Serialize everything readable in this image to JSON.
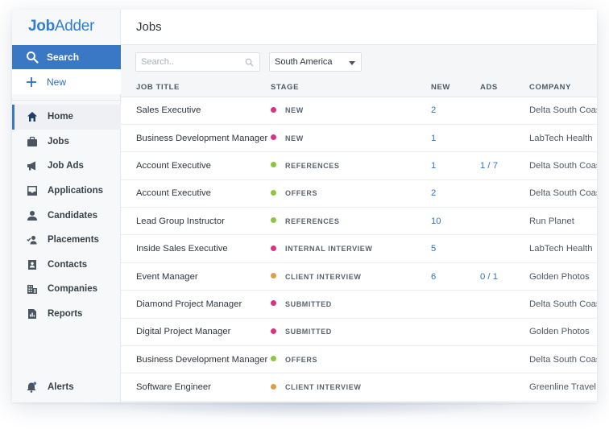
{
  "app": {
    "logo_part1": "Job",
    "logo_part2": "Adder"
  },
  "sidebar": {
    "search_label": "Search",
    "new_label": "New",
    "items": [
      {
        "label": "Home",
        "icon": "home-icon",
        "active": true
      },
      {
        "label": "Jobs",
        "icon": "briefcase-icon"
      },
      {
        "label": "Job Ads",
        "icon": "megaphone-icon"
      },
      {
        "label": "Applications",
        "icon": "inbox-icon"
      },
      {
        "label": "Candidates",
        "icon": "person-icon"
      },
      {
        "label": "Placements",
        "icon": "person-check-icon"
      },
      {
        "label": "Contacts",
        "icon": "contact-card-icon"
      },
      {
        "label": "Companies",
        "icon": "building-icon"
      },
      {
        "label": "Reports",
        "icon": "report-icon"
      }
    ],
    "alerts_label": "Alerts"
  },
  "page": {
    "title": "Jobs"
  },
  "filters": {
    "search_placeholder": "Search..",
    "region_value": "South America"
  },
  "table": {
    "columns": [
      "JOB TITLE",
      "STAGE",
      "NEW",
      "ADS",
      "COMPANY"
    ],
    "stage_colors": {
      "NEW": "#d63384",
      "REFERENCES": "#8cc63f",
      "OFFERS": "#8cc63f",
      "INTERNAL INTERVIEW": "#d63384",
      "CLIENT INTERVIEW": "#d9a04a",
      "SUBMITTED": "#d63384"
    },
    "rows": [
      {
        "title": "Sales Executive",
        "stage": "NEW",
        "new": "2",
        "ads": "",
        "company": "Delta South Coast"
      },
      {
        "title": "Business Development Manager",
        "stage": "NEW",
        "new": "1",
        "ads": "",
        "company": "LabTech Health"
      },
      {
        "title": "Account Executive",
        "stage": "REFERENCES",
        "new": "1",
        "ads": "1 / 7",
        "company": "Delta South Coast"
      },
      {
        "title": "Account Executive",
        "stage": "OFFERS",
        "new": "2",
        "ads": "",
        "company": "Delta South Coast"
      },
      {
        "title": "Lead Group Instructor",
        "stage": "REFERENCES",
        "new": "10",
        "ads": "",
        "company": "Run Planet"
      },
      {
        "title": "Inside Sales Executive",
        "stage": "INTERNAL INTERVIEW",
        "new": "5",
        "ads": "",
        "company": "LabTech Health"
      },
      {
        "title": "Event Manager",
        "stage": "CLIENT INTERVIEW",
        "new": "6",
        "ads": "0 / 1",
        "company": "Golden Photos"
      },
      {
        "title": "Diamond Project Manager",
        "stage": "SUBMITTED",
        "new": "",
        "ads": "",
        "company": "Delta South Coast"
      },
      {
        "title": "Digital Project Manager",
        "stage": "SUBMITTED",
        "new": "",
        "ads": "",
        "company": "Golden Photos"
      },
      {
        "title": "Business Development Manager",
        "stage": "OFFERS",
        "new": "",
        "ads": "",
        "company": "Delta South Coast"
      },
      {
        "title": "Software Engineer",
        "stage": "CLIENT INTERVIEW",
        "new": "",
        "ads": "",
        "company": "Greenline Travel"
      }
    ]
  }
}
